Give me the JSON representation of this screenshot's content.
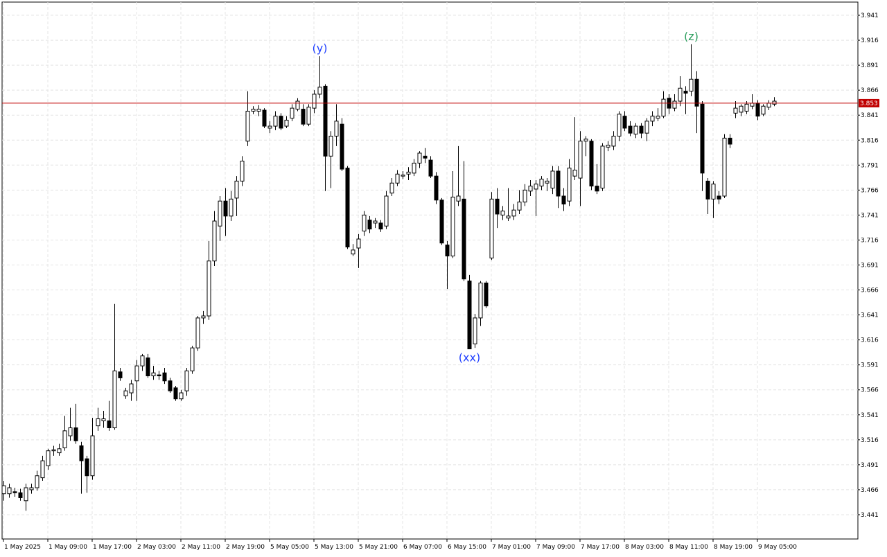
{
  "chart_data": {
    "type": "candlestick",
    "open": [
      3.462,
      3.462,
      3.464,
      3.463,
      3.455,
      3.466,
      3.468,
      3.478,
      3.49,
      3.505,
      3.503,
      3.508,
      3.52,
      3.528,
      3.51,
      3.497,
      3.48,
      3.53,
      3.535,
      3.535,
      3.528,
      3.584,
      3.56,
      3.563,
      3.575,
      3.59,
      3.598,
      3.58,
      3.581,
      3.583,
      3.575,
      3.568,
      3.557,
      3.565,
      3.585,
      3.608,
      3.638,
      3.64,
      3.695,
      3.73,
      3.755,
      3.74,
      3.758,
      3.775,
      3.815,
      3.845,
      3.845,
      3.846,
      3.828,
      3.83,
      3.84,
      3.83,
      3.838,
      3.847,
      3.847,
      3.832,
      3.848,
      3.862,
      3.87,
      3.8,
      3.82,
      3.832,
      3.788,
      3.702,
      3.708,
      3.725,
      3.736,
      3.733,
      3.733,
      3.73,
      3.763,
      3.773,
      3.78,
      3.782,
      3.783,
      3.793,
      3.8,
      3.796,
      3.78,
      3.756,
      3.711,
      3.7,
      3.755,
      3.757,
      3.675,
      3.612,
      3.638,
      3.673,
      3.698,
      3.757,
      3.741,
      3.738,
      3.74,
      3.746,
      3.754,
      3.765,
      3.767,
      3.77,
      3.773,
      3.768,
      3.785,
      3.76,
      3.755,
      3.78,
      3.778,
      3.815,
      3.815,
      3.77,
      3.768,
      3.809,
      3.81,
      3.82,
      3.84,
      3.83,
      3.822,
      3.83,
      3.823,
      3.835,
      3.838,
      3.84,
      3.858,
      3.848,
      3.855,
      3.865,
      3.865,
      3.877,
      3.852,
      3.775,
      3.757,
      3.76,
      3.76,
      3.818,
      3.843,
      3.844,
      3.845,
      3.85,
      3.853,
      3.842,
      3.849,
      3.852
    ],
    "high": [
      3.475,
      3.472,
      3.468,
      3.467,
      3.472,
      3.472,
      3.485,
      3.5,
      3.507,
      3.51,
      3.512,
      3.54,
      3.548,
      3.552,
      3.514,
      3.5,
      3.538,
      3.548,
      3.545,
      3.555,
      3.652,
      3.588,
      3.568,
      3.576,
      3.596,
      3.602,
      3.602,
      3.59,
      3.585,
      3.588,
      3.578,
      3.57,
      3.566,
      3.588,
      3.61,
      3.64,
      3.645,
      3.715,
      3.745,
      3.76,
      3.768,
      3.765,
      3.78,
      3.8,
      3.865,
      3.85,
      3.851,
      3.848,
      3.835,
      3.845,
      3.843,
      3.84,
      3.852,
      3.858,
      3.852,
      3.852,
      3.866,
      3.9,
      3.872,
      3.825,
      3.852,
      3.838,
      3.79,
      3.712,
      3.722,
      3.745,
      3.74,
      3.738,
      3.736,
      3.765,
      3.778,
      3.786,
      3.785,
      3.789,
      3.797,
      3.805,
      3.808,
      3.8,
      3.784,
      3.758,
      3.715,
      3.785,
      3.81,
      3.795,
      3.681,
      3.642,
      3.675,
      3.675,
      3.764,
      3.768,
      3.75,
      3.768,
      3.752,
      3.766,
      3.772,
      3.776,
      3.776,
      3.78,
      3.778,
      3.79,
      3.79,
      3.768,
      3.797,
      3.839,
      3.825,
      3.82,
      3.817,
      3.792,
      3.813,
      3.815,
      3.825,
      3.845,
      3.845,
      3.835,
      3.833,
      3.833,
      3.838,
      3.845,
      3.848,
      3.865,
      3.862,
      3.862,
      3.88,
      3.87,
      3.912,
      3.885,
      3.855,
      3.778,
      3.775,
      3.765,
      3.822,
      3.822,
      3.855,
      3.852,
      3.855,
      3.862,
      3.856,
      3.852,
      3.856,
      3.859
    ],
    "low": [
      3.455,
      3.458,
      3.459,
      3.455,
      3.445,
      3.462,
      3.465,
      3.475,
      3.486,
      3.5,
      3.5,
      3.505,
      3.515,
      3.512,
      3.462,
      3.463,
      3.476,
      3.525,
      3.528,
      3.525,
      3.526,
      3.575,
      3.557,
      3.555,
      3.555,
      3.585,
      3.578,
      3.576,
      3.576,
      3.572,
      3.563,
      3.555,
      3.555,
      3.56,
      3.582,
      3.605,
      3.632,
      3.636,
      3.69,
      3.715,
      3.72,
      3.735,
      3.74,
      3.77,
      3.81,
      3.842,
      3.84,
      3.828,
      3.823,
      3.826,
      3.826,
      3.828,
      3.835,
      3.845,
      3.83,
      3.83,
      3.843,
      3.858,
      3.765,
      3.768,
      3.81,
      3.785,
      3.707,
      3.7,
      3.688,
      3.72,
      3.723,
      3.728,
      3.724,
      3.727,
      3.76,
      3.77,
      3.777,
      3.776,
      3.78,
      3.788,
      3.793,
      3.778,
      3.752,
      3.711,
      3.667,
      3.698,
      3.75,
      3.675,
      3.607,
      3.608,
      3.63,
      3.648,
      3.696,
      3.728,
      3.736,
      3.735,
      3.736,
      3.742,
      3.75,
      3.76,
      3.74,
      3.766,
      3.765,
      3.762,
      3.748,
      3.745,
      3.75,
      3.776,
      3.75,
      3.8,
      3.766,
      3.762,
      3.765,
      3.805,
      3.806,
      3.815,
      3.825,
      3.82,
      3.818,
      3.818,
      3.815,
      3.83,
      3.835,
      3.838,
      3.842,
      3.845,
      3.85,
      3.842,
      3.86,
      3.823,
      3.765,
      3.742,
      3.738,
      3.752,
      3.758,
      3.808,
      3.838,
      3.84,
      3.842,
      3.847,
      3.836,
      3.84,
      3.846,
      3.85
    ],
    "close": [
      3.47,
      3.468,
      3.463,
      3.458,
      3.468,
      3.468,
      3.48,
      3.495,
      3.505,
      3.506,
      3.507,
      3.525,
      3.528,
      3.515,
      3.495,
      3.48,
      3.52,
      3.537,
      3.537,
      3.528,
      3.585,
      3.578,
      3.565,
      3.572,
      3.59,
      3.6,
      3.58,
      3.583,
      3.58,
      3.575,
      3.565,
      3.557,
      3.563,
      3.585,
      3.608,
      3.638,
      3.64,
      3.695,
      3.735,
      3.755,
      3.74,
      3.757,
      3.775,
      3.795,
      3.845,
      3.847,
      3.847,
      3.83,
      3.83,
      3.84,
      3.828,
      3.836,
      3.848,
      3.855,
      3.832,
      3.849,
      3.862,
      3.869,
      3.8,
      3.82,
      3.835,
      3.787,
      3.709,
      3.706,
      3.717,
      3.741,
      3.727,
      3.735,
      3.727,
      3.76,
      3.773,
      3.782,
      3.781,
      3.784,
      3.793,
      3.803,
      3.798,
      3.78,
      3.756,
      3.713,
      3.7,
      3.759,
      3.76,
      3.677,
      3.607,
      3.638,
      3.673,
      3.65,
      3.757,
      3.742,
      3.745,
      3.74,
      3.746,
      3.754,
      3.766,
      3.77,
      3.772,
      3.777,
      3.775,
      3.785,
      3.76,
      3.752,
      3.788,
      3.786,
      3.815,
      3.817,
      3.77,
      3.765,
      3.81,
      3.811,
      3.82,
      3.842,
      3.828,
      3.823,
      3.83,
      3.823,
      3.835,
      3.84,
      3.84,
      3.857,
      3.848,
      3.855,
      3.868,
      3.863,
      3.877,
      3.85,
      3.783,
      3.757,
      3.772,
      3.757,
      3.818,
      3.812,
      3.848,
      3.85,
      3.852,
      3.853,
      3.84,
      3.85,
      3.853,
      3.855
    ],
    "xlim": [
      -0.25,
      154.125
    ],
    "xticks": [
      {
        "value": 0,
        "label": "1 May 2025"
      },
      {
        "value": 8,
        "label": "1 May 09:00"
      },
      {
        "value": 16,
        "label": "1 May 17:00"
      },
      {
        "value": 24,
        "label": "2 May 03:00"
      },
      {
        "value": 32,
        "label": "2 May 11:00"
      },
      {
        "value": 40,
        "label": "2 May 19:00"
      },
      {
        "value": 48,
        "label": "5 May 05:00"
      },
      {
        "value": 56,
        "label": "5 May 13:00"
      },
      {
        "value": 64,
        "label": "5 May 21:00"
      },
      {
        "value": 72,
        "label": "6 May 07:00"
      },
      {
        "value": 80,
        "label": "6 May 15:00"
      },
      {
        "value": 88,
        "label": "7 May 01:00"
      },
      {
        "value": 96,
        "label": "7 May 09:00"
      },
      {
        "value": 104,
        "label": "7 May 17:00"
      },
      {
        "value": 112,
        "label": "8 May 03:00"
      },
      {
        "value": 120,
        "label": "8 May 11:00"
      },
      {
        "value": 128,
        "label": "8 May 19:00"
      },
      {
        "value": 136,
        "label": "9 May 05:00"
      }
    ],
    "ylim": [
      3.4167,
      3.9542
    ],
    "yticks": [
      3.441,
      3.466,
      3.491,
      3.516,
      3.541,
      3.566,
      3.591,
      3.616,
      3.641,
      3.666,
      3.691,
      3.716,
      3.741,
      3.766,
      3.791,
      3.816,
      3.841,
      3.866,
      3.891,
      3.916,
      3.941
    ],
    "grid": true,
    "current_price": 3.853,
    "current_price_color": "#c00000",
    "annotations": [
      {
        "text": "(y)",
        "index": 57,
        "position": "above",
        "color": "#1f3fff"
      },
      {
        "text": "(xx)",
        "index": 84,
        "position": "below",
        "color": "#1f3fff"
      },
      {
        "text": "(z)",
        "index": 124,
        "position": "above",
        "color": "#2a9d5c"
      }
    ]
  }
}
